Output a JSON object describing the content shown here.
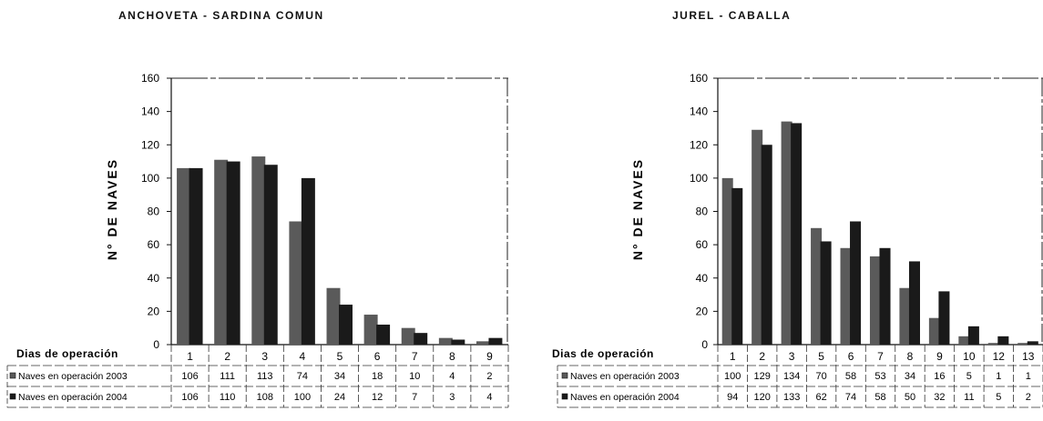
{
  "chart_data": [
    {
      "type": "bar",
      "title": "ANCHOVETA - SARDINA COMUN",
      "xlabel": "Dias de operación",
      "ylabel": "N° DE NAVES",
      "ylim": [
        0,
        160
      ],
      "yticks": [
        "0",
        "20",
        "40",
        "60",
        "80",
        "100",
        "120",
        "140",
        "160"
      ],
      "categories": [
        "1",
        "2",
        "3",
        "4",
        "5",
        "6",
        "7",
        "8",
        "9"
      ],
      "series": [
        {
          "name": "Naves en operación 2003",
          "values": [
            106,
            111,
            113,
            74,
            34,
            18,
            10,
            4,
            2
          ],
          "color": "#5a5a5a"
        },
        {
          "name": "Naves en operación 2004",
          "values": [
            106,
            110,
            108,
            100,
            24,
            12,
            7,
            3,
            4
          ],
          "color": "#1a1a1a"
        }
      ],
      "table_values": [
        [
          "106",
          "111",
          "113",
          "74",
          "34",
          "18",
          "10",
          "4",
          "2"
        ],
        [
          "106",
          "110",
          "108",
          "100",
          "24",
          "12",
          "7",
          "3",
          "4"
        ]
      ],
      "grid": false,
      "legend": "data-table"
    },
    {
      "type": "bar",
      "title": "JUREL - CABALLA",
      "xlabel": "Dias de operación",
      "ylabel": "N° DE NAVES",
      "ylim": [
        0,
        160
      ],
      "yticks": [
        "0",
        "20",
        "40",
        "60",
        "80",
        "100",
        "120",
        "140",
        "160"
      ],
      "categories": [
        "1",
        "2",
        "3",
        "5",
        "6",
        "7",
        "8",
        "9",
        "10",
        "12",
        "13"
      ],
      "series": [
        {
          "name": "Naves en operación 2003",
          "values": [
            100,
            129,
            134,
            70,
            58,
            53,
            34,
            16,
            5,
            1,
            1
          ],
          "color": "#5a5a5a"
        },
        {
          "name": "Naves en operación 2004",
          "values": [
            94,
            120,
            133,
            62,
            74,
            58,
            50,
            32,
            11,
            5,
            2
          ],
          "color": "#1a1a1a"
        }
      ],
      "table_values": [
        [
          "100",
          "129",
          "134",
          "70",
          "58",
          "53",
          "34",
          "16",
          "5",
          "1",
          "1"
        ],
        [
          "94",
          "120",
          "133",
          "62",
          "74",
          "58",
          "50",
          "32",
          "11",
          "5",
          "2"
        ]
      ],
      "grid": false,
      "legend": "data-table"
    }
  ]
}
